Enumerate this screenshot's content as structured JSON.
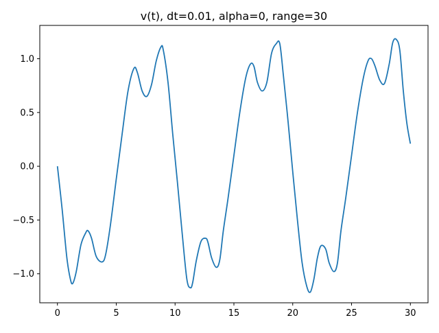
{
  "chart_data": {
    "type": "line",
    "title": "v(t), dt=0.01, alpha=0, range=30",
    "xlabel": "",
    "ylabel": "",
    "xlim": [
      -1.5,
      31.5
    ],
    "ylim": [
      -1.27,
      1.31
    ],
    "grid": false,
    "legend": "none",
    "xticks": [
      0,
      5,
      10,
      15,
      20,
      25,
      30
    ],
    "xtick_labels": [
      "0",
      "5",
      "10",
      "15",
      "20",
      "25",
      "30"
    ],
    "yticks": [
      -1.0,
      -0.5,
      0.0,
      0.5,
      1.0
    ],
    "ytick_labels": [
      "−1.0",
      "−0.5",
      "0.0",
      "0.5",
      "1.0"
    ],
    "series": [
      {
        "color": "#1f77b4",
        "x": [
          0,
          0.4,
          0.8,
          1.1,
          1.3,
          1.6,
          2.0,
          2.4,
          2.6,
          2.9,
          3.3,
          3.8,
          4.1,
          4.5,
          5.0,
          5.5,
          6.0,
          6.5,
          6.8,
          7.2,
          7.6,
          8.0,
          8.4,
          8.8,
          9.0,
          9.4,
          9.8,
          10.2,
          10.6,
          11.0,
          11.3,
          11.5,
          11.8,
          12.2,
          12.6,
          12.8,
          13.1,
          13.5,
          13.8,
          14.1,
          14.5,
          15.0,
          15.5,
          16.0,
          16.4,
          16.7,
          17.0,
          17.4,
          17.8,
          18.2,
          18.6,
          18.9,
          19.2,
          19.6,
          20.0,
          20.4,
          20.8,
          21.2,
          21.5,
          21.8,
          22.1,
          22.4,
          22.8,
          23.1,
          23.5,
          23.8,
          24.1,
          24.5,
          25.0,
          25.5,
          26.0,
          26.4,
          26.7,
          27.0,
          27.4,
          27.8,
          28.2,
          28.5,
          28.8,
          29.1,
          29.4,
          29.7,
          30.0
        ],
        "y": [
          0.0,
          -0.4,
          -0.85,
          -1.05,
          -1.09,
          -0.98,
          -0.73,
          -0.62,
          -0.6,
          -0.67,
          -0.84,
          -0.89,
          -0.82,
          -0.55,
          -0.12,
          0.3,
          0.7,
          0.91,
          0.87,
          0.7,
          0.65,
          0.76,
          0.98,
          1.11,
          1.08,
          0.78,
          0.3,
          -0.15,
          -0.62,
          -1.05,
          -1.13,
          -1.08,
          -0.88,
          -0.7,
          -0.67,
          -0.71,
          -0.85,
          -0.94,
          -0.87,
          -0.6,
          -0.3,
          0.1,
          0.5,
          0.82,
          0.95,
          0.93,
          0.78,
          0.7,
          0.78,
          1.05,
          1.14,
          1.14,
          0.85,
          0.42,
          -0.05,
          -0.5,
          -0.9,
          -1.12,
          -1.17,
          -1.05,
          -0.85,
          -0.74,
          -0.77,
          -0.9,
          -0.98,
          -0.9,
          -0.6,
          -0.3,
          0.1,
          0.5,
          0.82,
          0.98,
          1.0,
          0.93,
          0.8,
          0.77,
          0.95,
          1.15,
          1.18,
          1.08,
          0.7,
          0.4,
          0.21
        ]
      }
    ]
  }
}
